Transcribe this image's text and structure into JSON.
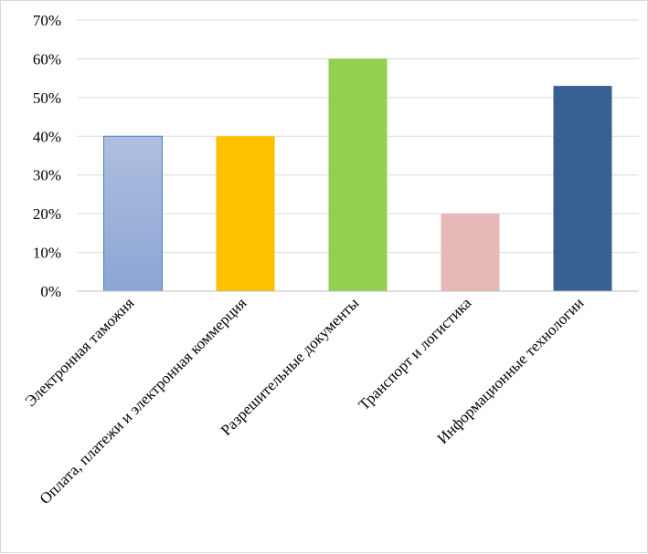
{
  "chart_data": {
    "type": "bar",
    "title": "",
    "xlabel": "",
    "ylabel": "",
    "categories": [
      "Электронная таможня",
      "Оплата, платежи и электронная коммерция",
      "Разрешительные документы",
      "Транспорт и логистика",
      "Информационные технологии"
    ],
    "values": [
      40,
      40,
      60,
      20,
      53
    ],
    "ylim": [
      0,
      70
    ],
    "y_ticks": [
      0,
      10,
      20,
      30,
      40,
      50,
      60,
      70
    ],
    "y_tick_labels": [
      "0%",
      "10%",
      "20%",
      "30%",
      "40%",
      "50%",
      "60%",
      "70%"
    ],
    "value_unit": "%",
    "grid": true,
    "legend": "none",
    "bar_colors": [
      "#95acd4",
      "#ffc000",
      "#92d050",
      "#e6b8b7",
      "#366092"
    ],
    "bar_gradient_top": "#afbfdf",
    "bar_gradient_bottom": "#8ba6d3",
    "bar_border": "#4f81bd"
  }
}
